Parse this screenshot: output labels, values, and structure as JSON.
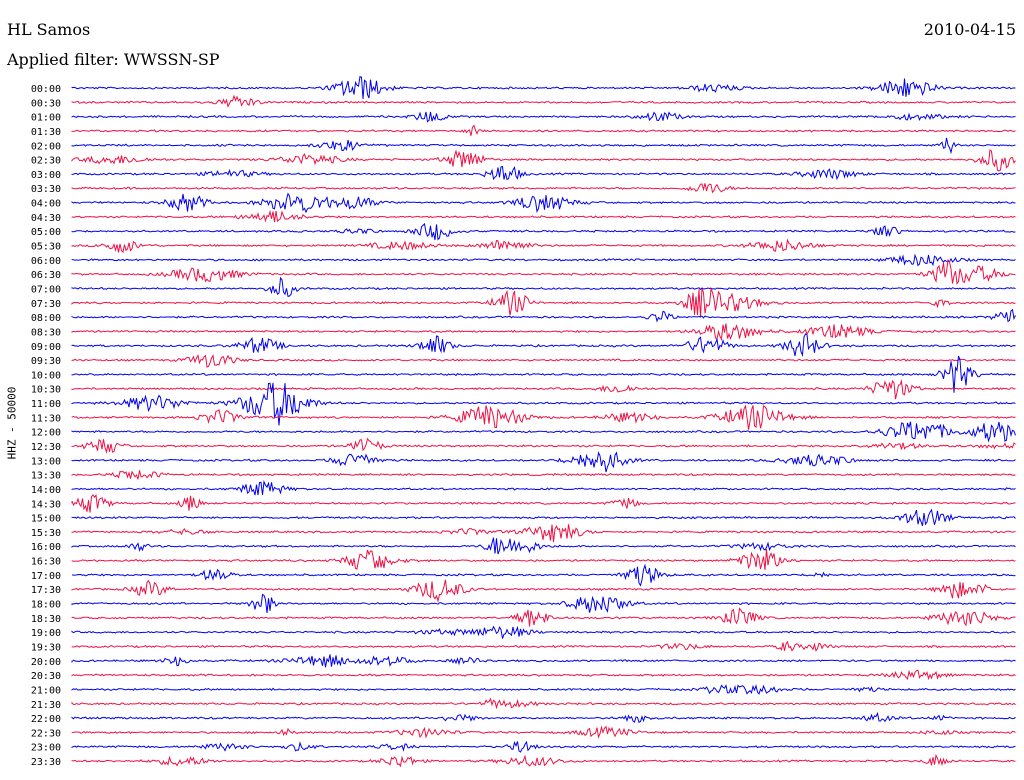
{
  "header": {
    "station": "HL Samos",
    "date": "2010-04-15",
    "filter_prefix": "Applied filter:",
    "filter_name": "WWSSN-SP"
  },
  "vertical_label": "HHZ - 50000",
  "colors": {
    "blue": "#0000ee",
    "red": "#ee1144",
    "background": "#ffffff",
    "text": "#000000"
  },
  "chart_data": {
    "type": "line",
    "title": "HL Samos",
    "subtitle": "Applied filter: WWSSN-SP",
    "channel_label": "HHZ - 50000",
    "row_labels": [
      "00:00",
      "00:30",
      "01:00",
      "01:30",
      "02:00",
      "02:30",
      "03:00",
      "03:30",
      "04:00",
      "04:30",
      "05:00",
      "05:30",
      "06:00",
      "06:30",
      "07:00",
      "07:30",
      "08:00",
      "08:30",
      "09:00",
      "09:30",
      "10:00",
      "10:30",
      "11:00",
      "11:30",
      "12:00",
      "12:30",
      "13:00",
      "13:30",
      "14:00",
      "14:30",
      "15:00",
      "15:30",
      "16:00",
      "16:30",
      "17:00",
      "17:30",
      "18:00",
      "18:30",
      "19:00",
      "19:30",
      "20:00",
      "20:30",
      "21:00",
      "21:30",
      "22:00",
      "22:30",
      "23:00",
      "23:30"
    ],
    "row_minutes": 30,
    "color_cycle": [
      "blue",
      "red"
    ],
    "legend": "none",
    "grid": false
  }
}
